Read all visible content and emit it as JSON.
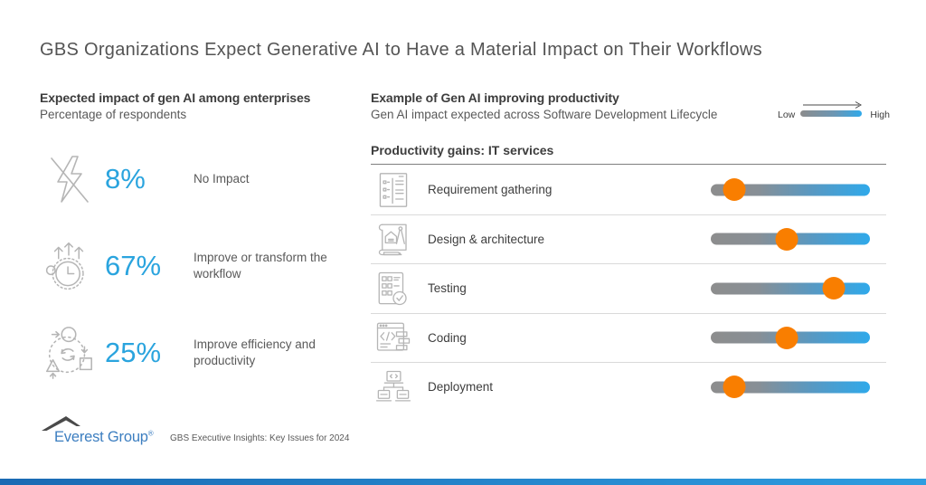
{
  "title": "GBS Organizations Expect Generative AI to Have a Material Impact on Their Workflows",
  "left_panel": {
    "heading": "Expected impact of gen AI among enterprises",
    "subheading": "Percentage of respondents",
    "stats": [
      {
        "icon": "no-impact-icon",
        "value": "8%",
        "label": "No Impact"
      },
      {
        "icon": "transform-workflow-icon",
        "value": "67%",
        "label": "Improve or transform the workflow"
      },
      {
        "icon": "efficiency-icon",
        "value": "25%",
        "label": "Improve efficiency and productivity"
      }
    ]
  },
  "right_panel": {
    "heading": "Example of Gen AI improving productivity",
    "subheading": "Gen AI impact expected across Software Development Lifecycle",
    "legend": {
      "low": "Low",
      "high": "High"
    },
    "section_title": "Productivity gains: IT services",
    "rows": [
      {
        "icon": "requirement-gathering-icon",
        "label": "Requirement gathering",
        "impact_percent": 15
      },
      {
        "icon": "design-architecture-icon",
        "label": "Design & architecture",
        "impact_percent": 48
      },
      {
        "icon": "testing-icon",
        "label": "Testing",
        "impact_percent": 77
      },
      {
        "icon": "coding-icon",
        "label": "Coding",
        "impact_percent": 48
      },
      {
        "icon": "deployment-icon",
        "label": "Deployment",
        "impact_percent": 15
      }
    ]
  },
  "footer": {
    "logo_text": "Everest Group",
    "registered_mark": "®",
    "source_text": "GBS Executive Insights: Key Issues for 2024"
  },
  "colors": {
    "accent_blue": "#2AA4DE",
    "marker_orange": "#F97E00",
    "slider_gray": "#8C8C8C",
    "slider_blue": "#2FA9EA",
    "text_dark": "#3D3D3D",
    "text_gray": "#595959",
    "icon_gray": "#B5B5B5",
    "logo_blue": "#3C7EC0",
    "bottom_bar_blue": "#2377C4"
  },
  "chart_data": [
    {
      "type": "bar",
      "title": "Expected impact of gen AI among enterprises",
      "subtitle": "Percentage of respondents",
      "categories": [
        "No Impact",
        "Improve or transform the workflow",
        "Improve efficiency and productivity"
      ],
      "values": [
        8,
        67,
        25
      ],
      "unit": "%"
    },
    {
      "type": "scatter",
      "title": "Productivity gains: IT services",
      "subtitle": "Gen AI impact expected across Software Development Lifecycle",
      "categories": [
        "Requirement gathering",
        "Design & architecture",
        "Testing",
        "Coding",
        "Deployment"
      ],
      "values": [
        15,
        48,
        77,
        48,
        15
      ],
      "xlim": [
        0,
        100
      ],
      "scale_note": "Impact scale from Low (0) to High (100), shown as marker position on gradient slider",
      "legend": [
        "Low",
        "High"
      ],
      "legend_position": "top-right"
    }
  ]
}
